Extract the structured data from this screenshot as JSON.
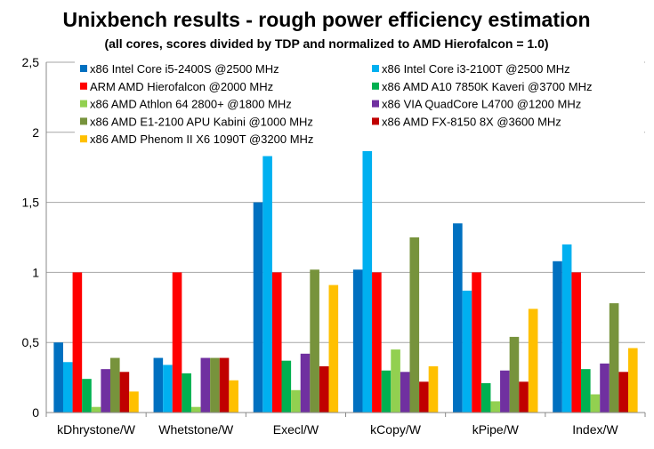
{
  "chart_data": {
    "type": "bar",
    "title": "Unixbench results - rough power efficiency estimation",
    "subtitle": "(all cores, scores divided by TDP and normalized to AMD Hierofalcon = 1.0)",
    "xlabel": "",
    "ylabel": "",
    "ylim": [
      0,
      2.5
    ],
    "yticks": [
      "0",
      "0,5",
      "1",
      "1,5",
      "2",
      "2,5"
    ],
    "ytick_values": [
      0,
      0.5,
      1,
      1.5,
      2,
      2.5
    ],
    "grid": true,
    "legend_placement": "top",
    "categories": [
      "kDhrystone/W",
      "Whetstone/W",
      "Execl/W",
      "kCopy/W",
      "kPipe/W",
      "Index/W"
    ],
    "series": [
      {
        "name": "x86 Intel Core i5-2400S @2500 MHz",
        "color": "#0070C0",
        "values": [
          0.5,
          0.39,
          1.5,
          1.02,
          1.35,
          1.08
        ]
      },
      {
        "name": "x86 Intel Core i3-2100T @2500 MHz",
        "color": "#00B0F0",
        "values": [
          0.36,
          0.34,
          1.83,
          2.07,
          0.87,
          1.2
        ]
      },
      {
        "name": "ARM AMD Hierofalcon @2000 MHz",
        "color": "#FF0000",
        "values": [
          1.0,
          1.0,
          1.0,
          1.0,
          1.0,
          1.0
        ]
      },
      {
        "name": "x86 AMD A10 7850K Kaveri @3700 MHz",
        "color": "#00B050",
        "values": [
          0.24,
          0.28,
          0.37,
          0.3,
          0.21,
          0.31
        ]
      },
      {
        "name": "x86 AMD Athlon 64 2800+ @1800 MHz",
        "color": "#92D050",
        "values": [
          0.04,
          0.04,
          0.16,
          0.45,
          0.08,
          0.13
        ]
      },
      {
        "name": "x86 VIA QuadCore L4700 @1200 MHz",
        "color": "#7030A0",
        "values": [
          0.31,
          0.39,
          0.42,
          0.29,
          0.3,
          0.35
        ]
      },
      {
        "name": "x86 AMD E1-2100 APU Kabini @1000 MHz",
        "color": "#77933C",
        "values": [
          0.39,
          0.39,
          1.02,
          1.25,
          0.54,
          0.78
        ]
      },
      {
        "name": "x86 AMD FX-8150 8X @3600 MHz",
        "color": "#C00000",
        "values": [
          0.29,
          0.39,
          0.33,
          0.22,
          0.22,
          0.29
        ]
      },
      {
        "name": "x86 AMD Phenom II X6 1090T @3200 MHz",
        "color": "#FFC000",
        "values": [
          0.15,
          0.23,
          0.91,
          0.33,
          0.74,
          0.46
        ]
      }
    ]
  }
}
